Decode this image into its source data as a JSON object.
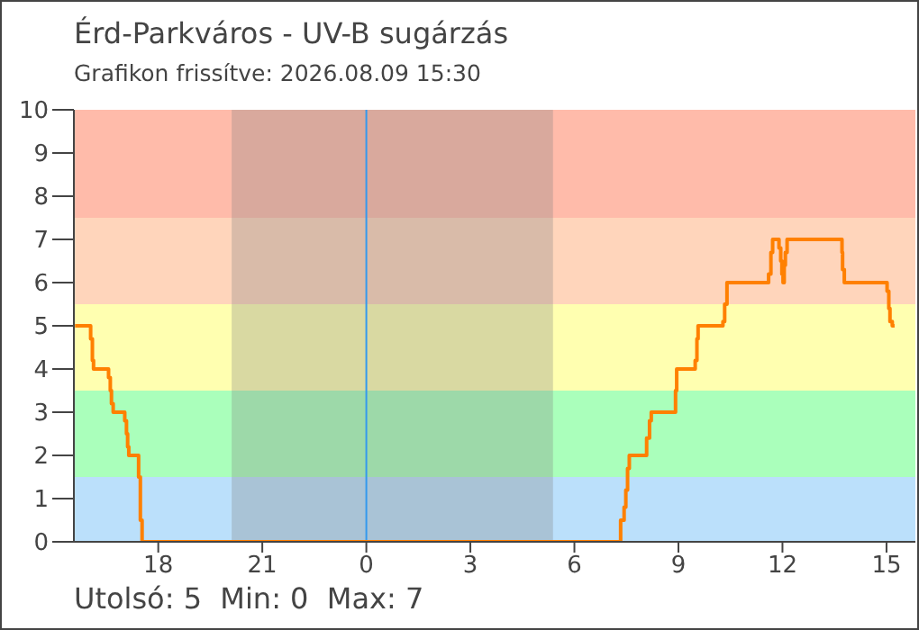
{
  "chart_data": {
    "type": "step",
    "title": "Érd-Parkváros -  UV-B sugárzás",
    "subtitle": "Grafikon frissítve:  2026.08.09 15:30",
    "x": [
      "2026-08-08T15:36",
      "2026-08-08T16:03",
      "2026-08-08T16:06",
      "2026-08-08T16:08",
      "2026-08-08T16:34",
      "2026-08-08T16:37",
      "2026-08-08T16:39",
      "2026-08-08T16:42",
      "2026-08-08T17:02",
      "2026-08-08T17:05",
      "2026-08-08T17:07",
      "2026-08-08T17:09",
      "2026-08-08T17:26",
      "2026-08-08T17:29",
      "2026-08-08T17:32",
      "2026-08-09T07:19",
      "2026-08-09T07:20",
      "2026-08-09T07:26",
      "2026-08-09T07:29",
      "2026-08-09T07:32",
      "2026-08-09T07:35",
      "2026-08-09T08:05",
      "2026-08-09T08:10",
      "2026-08-09T08:13",
      "2026-08-09T08:55",
      "2026-08-09T08:57",
      "2026-08-09T09:29",
      "2026-08-09T09:32",
      "2026-08-09T09:34",
      "2026-08-09T10:17",
      "2026-08-09T10:20",
      "2026-08-09T10:24",
      "2026-08-09T11:36",
      "2026-08-09T11:40",
      "2026-08-09T11:43",
      "2026-08-09T11:54",
      "2026-08-09T11:57",
      "2026-08-09T11:59",
      "2026-08-09T12:01",
      "2026-08-09T12:03",
      "2026-08-09T12:05",
      "2026-08-09T12:08",
      "2026-08-09T13:43",
      "2026-08-09T13:44",
      "2026-08-09T13:47",
      "2026-08-09T15:01",
      "2026-08-09T15:04",
      "2026-08-09T15:06",
      "2026-08-09T15:10",
      "2026-08-09T15:14"
    ],
    "series": [
      {
        "color": "#ff8000",
        "values": [
          5,
          4.7,
          4.2,
          4,
          3.8,
          3.5,
          3.2,
          3,
          2.8,
          2.5,
          2.2,
          2,
          1.5,
          0.5,
          0,
          0,
          0.5,
          0.8,
          1.2,
          1.7,
          2,
          2.4,
          2.8,
          3,
          3.5,
          4,
          4.2,
          4.7,
          5,
          5.1,
          5.5,
          6,
          6.2,
          6.7,
          7,
          6.8,
          6.5,
          6.2,
          6,
          6.4,
          6.7,
          7,
          6.7,
          6.3,
          6,
          5.8,
          5.4,
          5.1,
          5,
          5
        ]
      }
    ],
    "xlim": [
      "2026-08-08T15:34",
      "2026-08-09T15:50"
    ],
    "xticks": [
      {
        "value": "2026-08-08T18:00",
        "label": "18"
      },
      {
        "value": "2026-08-08T21:00",
        "label": "21"
      },
      {
        "value": "2026-08-09T00:00",
        "label": "0"
      },
      {
        "value": "2026-08-09T03:00",
        "label": "3"
      },
      {
        "value": "2026-08-09T06:00",
        "label": "6"
      },
      {
        "value": "2026-08-09T09:00",
        "label": "9"
      },
      {
        "value": "2026-08-09T12:00",
        "label": "12"
      },
      {
        "value": "2026-08-09T15:00",
        "label": "15"
      }
    ],
    "ylim": [
      0,
      10
    ],
    "yticks": [
      0,
      1,
      2,
      3,
      4,
      5,
      6,
      7,
      8,
      9,
      10
    ],
    "bands": [
      {
        "axis": "y",
        "from": 0,
        "to": 1.5,
        "color": "#bbe0fb"
      },
      {
        "axis": "y",
        "from": 1.5,
        "to": 3.5,
        "color": "#aaffbb"
      },
      {
        "axis": "y",
        "from": 3.5,
        "to": 5.5,
        "color": "#ffffb0"
      },
      {
        "axis": "y",
        "from": 5.5,
        "to": 7.5,
        "color": "#ffd5bb"
      },
      {
        "axis": "y",
        "from": 7.5,
        "to": 10,
        "color": "#ffbbaa"
      },
      {
        "axis": "x",
        "from": "2026-08-08T20:07",
        "to": "2026-08-09T05:23",
        "color": "#808080"
      }
    ],
    "ref_lines": [
      {
        "axis": "x",
        "value": "2026-08-09T00:00",
        "color": "#3399ee"
      }
    ],
    "annotations": [
      "Utolsó: 5  Min: 0  Max: 7"
    ],
    "grid": false,
    "legend": false,
    "marker": "none",
    "line_style": "solid"
  }
}
